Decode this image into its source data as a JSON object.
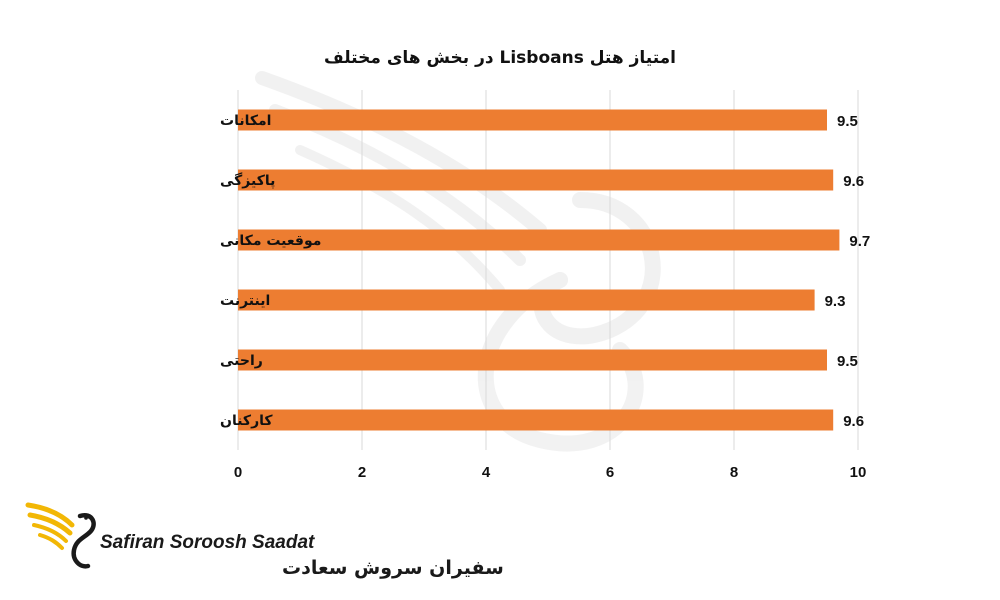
{
  "chart_data": {
    "type": "bar",
    "orientation": "horizontal",
    "title": "امتیاز هتل Lisboans در بخش های مختلف",
    "categories": [
      "امکانات",
      "پاکیزگی",
      "موقعیت مکانی",
      "اینترنت",
      "راحتی",
      "کارکنان"
    ],
    "values": [
      9.5,
      9.6,
      9.7,
      9.3,
      9.5,
      9.6
    ],
    "value_labels": [
      "9.5",
      "9.6",
      "9.7",
      "9.3",
      "9.5",
      "9.6"
    ],
    "xlim": [
      0,
      10
    ],
    "xticks": [
      "0",
      "2",
      "4",
      "6",
      "8",
      "10"
    ],
    "xtick_values": [
      0,
      2,
      4,
      6,
      8,
      10
    ],
    "grid": "vertical",
    "bar_color": "#ED7D31",
    "grid_color": "#d9d9d9"
  },
  "logo": {
    "name_en": "Safiran Soroosh Saadat",
    "name_fa": "سفیران سروش سعادت",
    "accent_color": "#F2B705"
  }
}
